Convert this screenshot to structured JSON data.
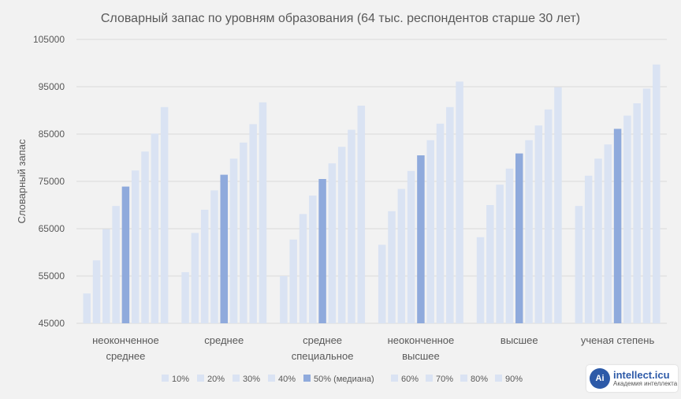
{
  "chart_data": {
    "type": "bar",
    "title": "Словарный запас по уровням образования (64 тыс. респондентов старше 30 лет)",
    "xlabel": "",
    "ylabel": "Словарный запас",
    "ylim": [
      45000,
      105000
    ],
    "yticks": [
      "45000",
      "55000",
      "65000",
      "75000",
      "85000",
      "95000",
      "105000"
    ],
    "grid": true,
    "legend_position": "bottom",
    "categories": [
      [
        "неоконченное",
        "среднее"
      ],
      [
        "среднее"
      ],
      [
        "среднее",
        "специальное"
      ],
      [
        "неоконченное",
        "высшее"
      ],
      [
        "высшее"
      ],
      [
        "ученая степень"
      ]
    ],
    "series": [
      {
        "name": "10%",
        "values": [
          51300,
          55800,
          55000,
          61600,
          63200,
          69800
        ]
      },
      {
        "name": "20%",
        "values": [
          58300,
          64100,
          62700,
          68700,
          70000,
          76200
        ]
      },
      {
        "name": "30%",
        "values": [
          64900,
          69000,
          68100,
          73400,
          74300,
          79800
        ]
      },
      {
        "name": "40%",
        "values": [
          69800,
          73100,
          72000,
          77200,
          77700,
          82800
        ]
      },
      {
        "name": "50% (медиана)",
        "values": [
          73900,
          76400,
          75500,
          80500,
          80900,
          86100
        ]
      },
      {
        "name": "60%",
        "values": [
          77300,
          79800,
          78800,
          83700,
          83700,
          88900
        ]
      },
      {
        "name": "70%",
        "values": [
          81300,
          83200,
          82300,
          87200,
          86800,
          91500
        ]
      },
      {
        "name": "80%",
        "values": [
          85100,
          87100,
          85900,
          90700,
          90200,
          94600
        ]
      },
      {
        "name": "90%",
        "values": [
          90700,
          91700,
          91000,
          96100,
          94900,
          99700
        ]
      }
    ],
    "colors": {
      "bar": "#dae3f3",
      "median": "#8faadc",
      "grid": "#d9d9d9",
      "text": "#595959"
    }
  },
  "watermark": {
    "logo_text": "Ai",
    "title": "intellect.icu",
    "subtitle": "Академия интеллекта"
  }
}
